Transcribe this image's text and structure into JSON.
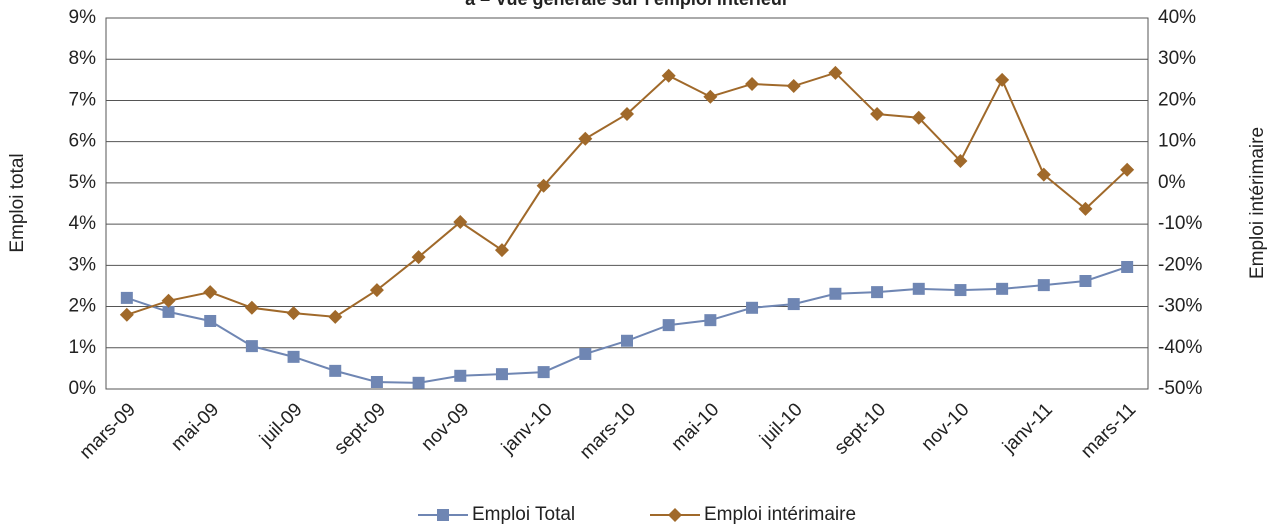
{
  "chart_data": {
    "type": "line",
    "title": "a – Vue générale sur l'emploi intérieur",
    "y_label": "Emploi total",
    "y2_label": "Emploi intérimaire",
    "categories": [
      "mars-09",
      null,
      "mai-09",
      null,
      "juil-09",
      null,
      "sept-09",
      null,
      "nov-09",
      null,
      "janv-10",
      null,
      "mars-10",
      null,
      "mai-10",
      null,
      "juil-10",
      null,
      "sept-10",
      null,
      "nov-10",
      null,
      "janv-11",
      null,
      "mars-11"
    ],
    "series": [
      {
        "name": "Emploi Total",
        "color": "#6f86b3",
        "marker": "square",
        "values": [
          2.21,
          1.87,
          1.65,
          1.04,
          0.78,
          0.44,
          0.17,
          0.15,
          0.32,
          0.36,
          0.41,
          0.85,
          1.17,
          1.55,
          1.67,
          1.97,
          2.06,
          2.31,
          2.35,
          2.43,
          2.4,
          2.43,
          2.52,
          2.62,
          2.96
        ]
      },
      {
        "name": "Emploi intérimaire",
        "color": "#a0692a",
        "marker": "diamond",
        "axis": "y2",
        "values": [
          -32.0,
          -28.6,
          -26.5,
          -30.3,
          -31.6,
          -32.5,
          -26.0,
          -18.0,
          -9.5,
          -16.3,
          -0.7,
          10.7,
          16.7,
          26.0,
          20.9,
          24.0,
          23.5,
          26.7,
          16.7,
          15.8,
          5.3,
          25.0,
          2.0,
          -6.3,
          3.2
        ]
      }
    ],
    "ylim": [
      0,
      9
    ],
    "yticks": [
      {
        "value": 0,
        "label": "0%"
      },
      {
        "value": 1,
        "label": "1%"
      },
      {
        "value": 2,
        "label": "2%"
      },
      {
        "value": 3,
        "label": "3%"
      },
      {
        "value": 4,
        "label": "4%"
      },
      {
        "value": 5,
        "label": "5%"
      },
      {
        "value": 6,
        "label": "6%"
      },
      {
        "value": 7,
        "label": "7%"
      },
      {
        "value": 8,
        "label": "8%"
      },
      {
        "value": 9,
        "label": "9%"
      }
    ],
    "y2lim": [
      -50,
      40
    ],
    "y2ticks": [
      {
        "value": -50,
        "label": "-50%"
      },
      {
        "value": -40,
        "label": "-40%"
      },
      {
        "value": -30,
        "label": "-30%"
      },
      {
        "value": -20,
        "label": "-20%"
      },
      {
        "value": -10,
        "label": "-10%"
      },
      {
        "value": 0,
        "label": "0%"
      },
      {
        "value": 10,
        "label": "10%"
      },
      {
        "value": 20,
        "label": "20%"
      },
      {
        "value": 30,
        "label": "30%"
      },
      {
        "value": 40,
        "label": "40%"
      }
    ],
    "grid": true,
    "legend": "bottom"
  }
}
